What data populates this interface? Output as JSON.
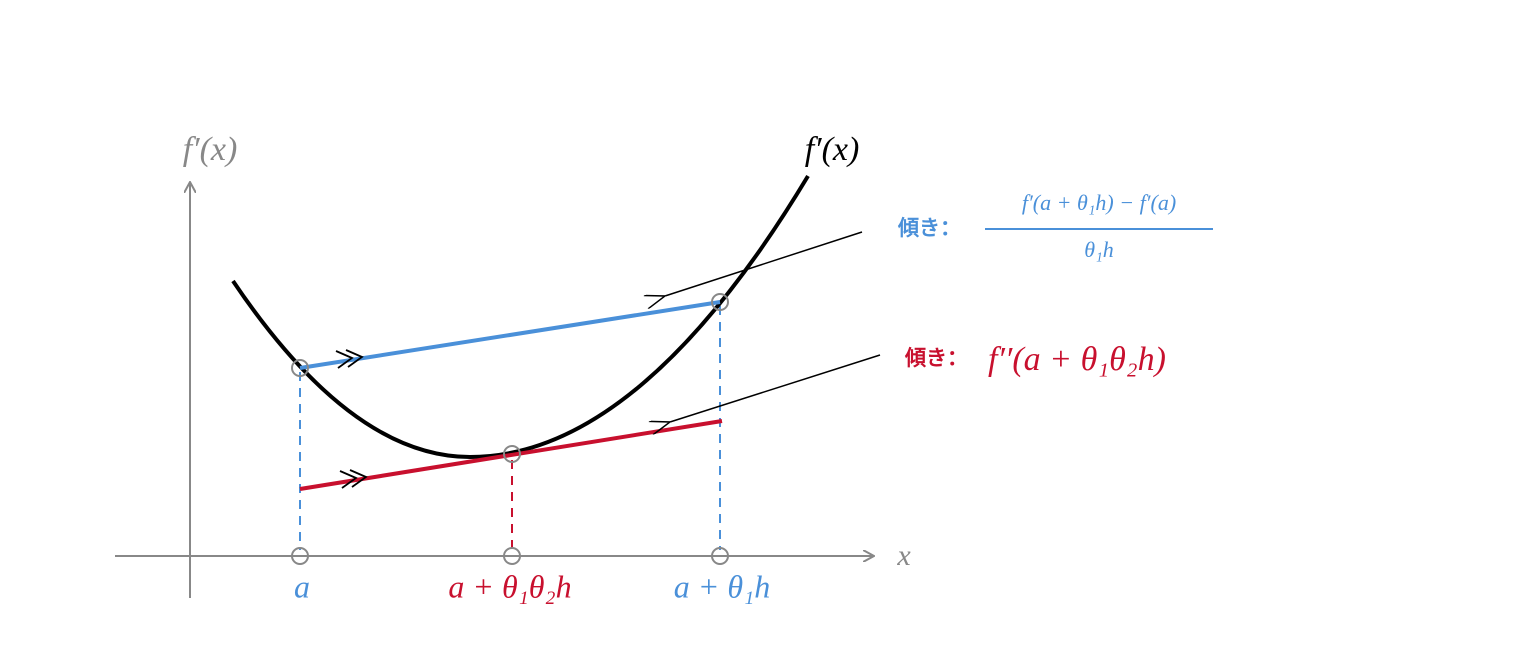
{
  "axes": {
    "y_label": "f′(x)",
    "x_label": "x"
  },
  "curve": {
    "label": "f′(x)"
  },
  "x_points": [
    "a",
    "a + θ₁θ₂h",
    "a + θ₁h"
  ],
  "blue_slope": {
    "prefix": "傾き：",
    "numerator": "f′(a + θ₁h) − f′(a)",
    "denominator": "θ₁h"
  },
  "red_slope": {
    "prefix": "傾き：",
    "formula": "f′′(a + θ₁θ₂h)"
  }
}
